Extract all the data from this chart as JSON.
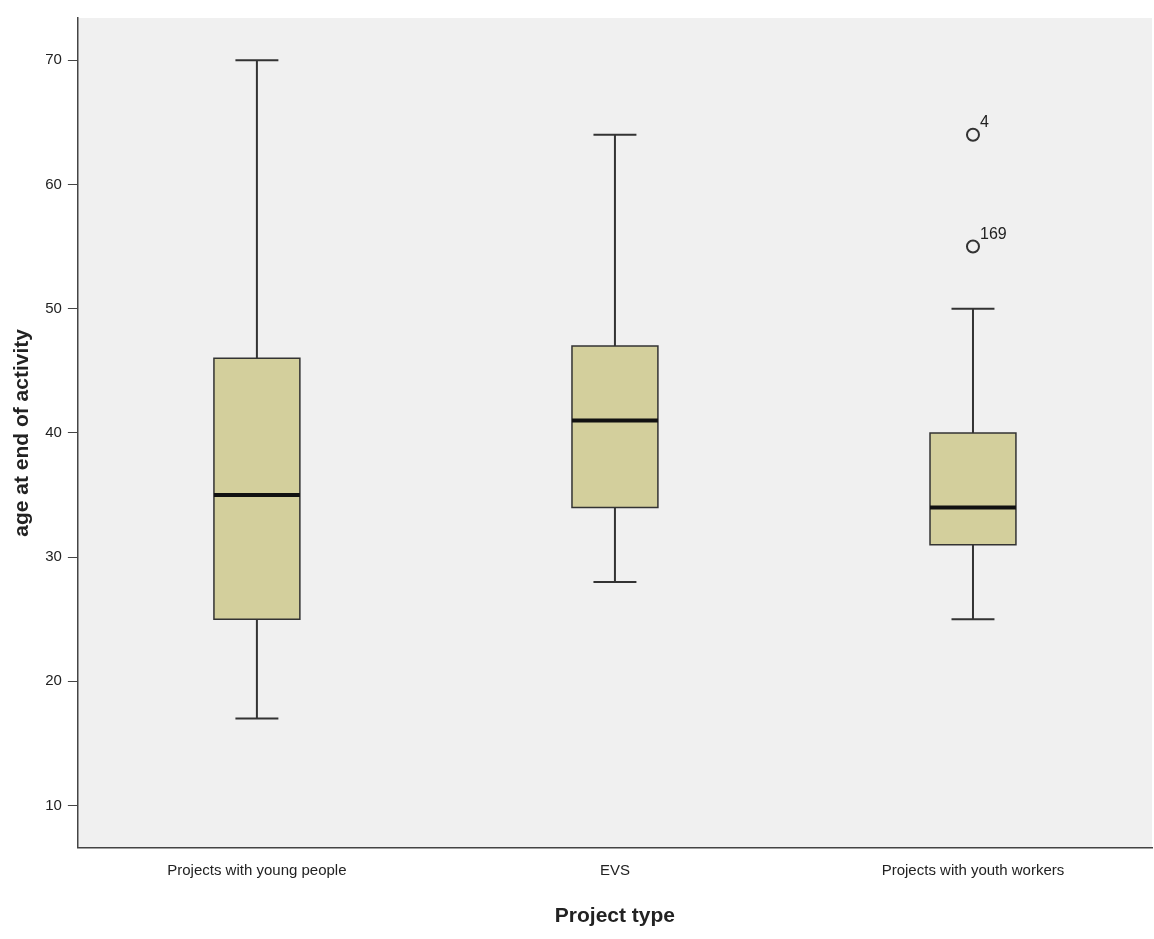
{
  "chart_data": {
    "type": "box",
    "xlabel": "Project type",
    "ylabel": "age at end of activity",
    "categories": [
      "Projects with young people",
      "EVS",
      "Projects with youth workers"
    ],
    "boxes": [
      {
        "low": 17,
        "q1": 25,
        "median": 35,
        "q3": 46,
        "high": 70
      },
      {
        "low": 28,
        "q1": 34,
        "median": 41,
        "q3": 47,
        "high": 64
      },
      {
        "low": 25,
        "q1": 31,
        "median": 34,
        "q3": 40,
        "high": 50,
        "outliers": [
          64,
          55
        ]
      }
    ],
    "color": "#d3cf9c",
    "ylim": [
      6.6,
      73.4
    ],
    "yticks": [
      10,
      20,
      30,
      40,
      50,
      60,
      70
    ],
    "grid": false,
    "legend": false,
    "annotations": [
      "4",
      "169"
    ]
  }
}
